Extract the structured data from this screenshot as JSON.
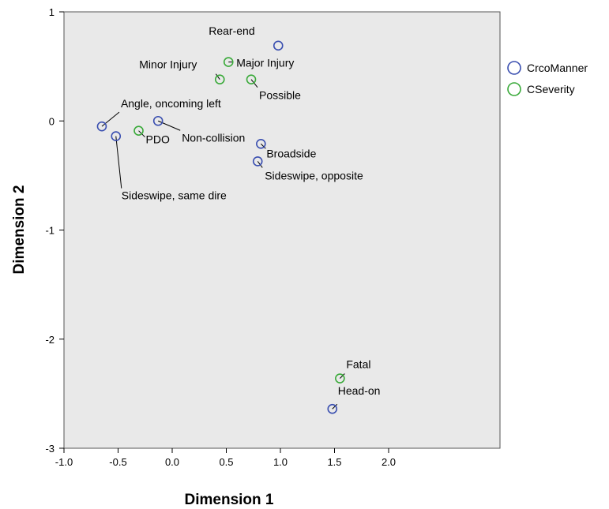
{
  "chart_data": {
    "type": "scatter",
    "xlabel": "Dimension 1",
    "ylabel": "Dimension 2",
    "xlim": [
      -1.0,
      3.0
    ],
    "ylim": [
      -3,
      1
    ],
    "xticks": [
      -1.0,
      -0.5,
      0.0,
      0.5,
      1.0,
      1.5,
      2.0
    ],
    "xtick_labels": [
      "-1.0",
      "-0.5",
      "0.0",
      "0.5",
      "1.0",
      "1.5",
      "2.0"
    ],
    "yticks": [
      1,
      0,
      -1,
      -2,
      -3
    ],
    "ytick_labels": [
      "1",
      "0",
      "-1",
      "-2",
      "-3"
    ],
    "grid": false,
    "plot_background": "#e9e9e9",
    "legend_position": "right",
    "series": [
      {
        "name": "CrcoManner",
        "color": "#3a4fb0",
        "points": [
          {
            "label": "Rear-end",
            "x": 0.98,
            "y": 0.69
          },
          {
            "label": "Angle, oncoming left",
            "x": -0.65,
            "y": -0.05
          },
          {
            "label": "Sideswipe, same dire",
            "x": -0.52,
            "y": -0.14
          },
          {
            "label": "Non-collision",
            "x": -0.13,
            "y": 0.0
          },
          {
            "label": "Broadside",
            "x": 0.82,
            "y": -0.21
          },
          {
            "label": "Sideswipe, opposite",
            "x": 0.79,
            "y": -0.37
          },
          {
            "label": "Head-on",
            "x": 1.48,
            "y": -2.64
          }
        ]
      },
      {
        "name": "CSeverity",
        "color": "#3aaa3a",
        "points": [
          {
            "label": "Minor Injury",
            "x": 0.44,
            "y": 0.38
          },
          {
            "label": "Major Injury",
            "x": 0.52,
            "y": 0.54
          },
          {
            "label": "Possible",
            "x": 0.73,
            "y": 0.38
          },
          {
            "label": "PDO",
            "x": -0.31,
            "y": -0.09
          },
          {
            "label": "Fatal",
            "x": 1.55,
            "y": -2.36
          }
        ]
      }
    ]
  }
}
